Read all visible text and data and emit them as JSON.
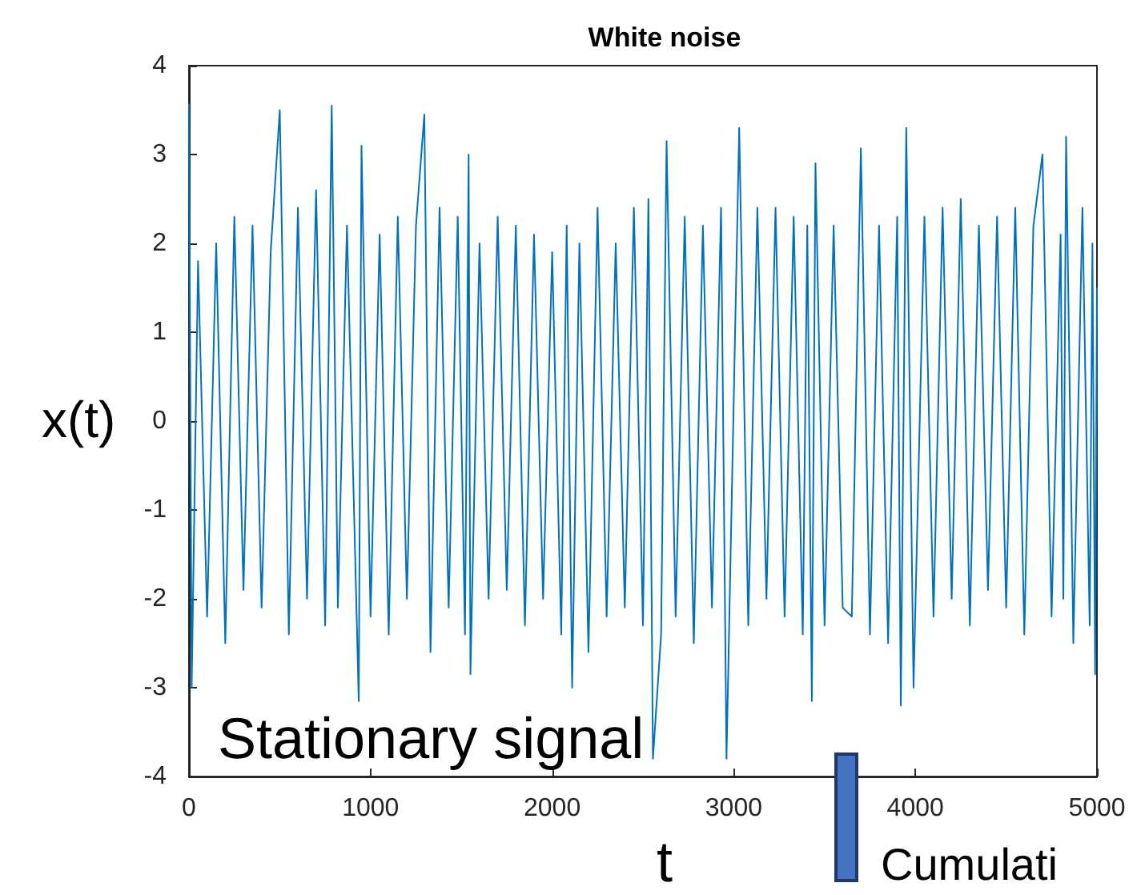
{
  "chart_data": {
    "type": "line",
    "title": "White noise",
    "xlabel": "t",
    "ylabel": "x(t)",
    "annotations": [
      "Stationary signal",
      "Cumulati"
    ],
    "xlim": [
      0,
      5000
    ],
    "xticks": [
      0,
      1000,
      2000,
      3000,
      4000,
      5000
    ],
    "ylim": [
      -4,
      4
    ],
    "yticks": [
      -4,
      -3,
      -2,
      -1,
      0,
      1,
      2,
      3,
      4
    ],
    "grid": false,
    "series": [
      {
        "color": "#0072bd",
        "x": [
          0,
          15,
          50,
          100,
          150,
          200,
          250,
          300,
          350,
          400,
          450,
          500,
          550,
          600,
          650,
          700,
          750,
          786,
          820,
          870,
          935,
          950,
          1000,
          1050,
          1100,
          1150,
          1200,
          1250,
          1296,
          1330,
          1380,
          1430,
          1480,
          1520,
          1540,
          1550,
          1600,
          1650,
          1700,
          1750,
          1800,
          1850,
          1900,
          1950,
          2000,
          2050,
          2080,
          2110,
          2150,
          2200,
          2250,
          2300,
          2350,
          2400,
          2450,
          2500,
          2530,
          2555,
          2600,
          2630,
          2680,
          2730,
          2780,
          2830,
          2880,
          2930,
          2960,
          3030,
          3080,
          3130,
          3180,
          3230,
          3280,
          3330,
          3380,
          3405,
          3430,
          3450,
          3500,
          3550,
          3600,
          3650,
          3700,
          3750,
          3800,
          3850,
          3900,
          3920,
          3950,
          3990,
          4050,
          4100,
          4150,
          4200,
          4250,
          4300,
          4350,
          4400,
          4450,
          4500,
          4550,
          4600,
          4650,
          4700,
          4750,
          4800,
          4815,
          4830,
          4870,
          4920,
          4960,
          4975,
          4990,
          5000
        ],
        "values": [
          3.57,
          -3.0,
          1.8,
          -2.2,
          2.0,
          -2.5,
          2.3,
          -1.9,
          2.2,
          -2.1,
          1.9,
          3.5,
          -2.4,
          2.4,
          -2.0,
          2.6,
          -2.3,
          3.55,
          -2.1,
          2.2,
          -3.15,
          3.1,
          -2.2,
          2.1,
          -2.4,
          2.3,
          -2.0,
          2.2,
          3.45,
          -2.6,
          2.4,
          -2.1,
          2.3,
          -2.4,
          3.0,
          -2.85,
          2.0,
          -2.0,
          2.3,
          -1.9,
          2.2,
          -2.3,
          2.1,
          -2.0,
          1.9,
          -2.4,
          2.2,
          -3.0,
          2.0,
          -2.6,
          2.4,
          -2.2,
          2.0,
          -2.1,
          2.4,
          -2.3,
          2.5,
          -3.8,
          -2.4,
          3.15,
          -2.2,
          2.3,
          -2.5,
          2.2,
          -2.1,
          2.4,
          -3.8,
          3.3,
          -2.3,
          2.4,
          -2.0,
          2.4,
          -2.2,
          2.3,
          -2.4,
          2.2,
          -3.15,
          2.9,
          -2.3,
          2.2,
          -2.1,
          -2.2,
          3.07,
          -2.4,
          2.2,
          -2.5,
          2.3,
          -3.2,
          3.3,
          -3.0,
          2.3,
          -2.2,
          2.4,
          -2.0,
          2.5,
          -2.3,
          2.2,
          -1.9,
          2.3,
          -2.1,
          2.4,
          -2.4,
          2.2,
          3.0,
          -2.2,
          2.1,
          -2.0,
          3.2,
          -2.5,
          2.4,
          -2.3,
          2.0,
          -2.85,
          1.5
        ]
      }
    ]
  }
}
